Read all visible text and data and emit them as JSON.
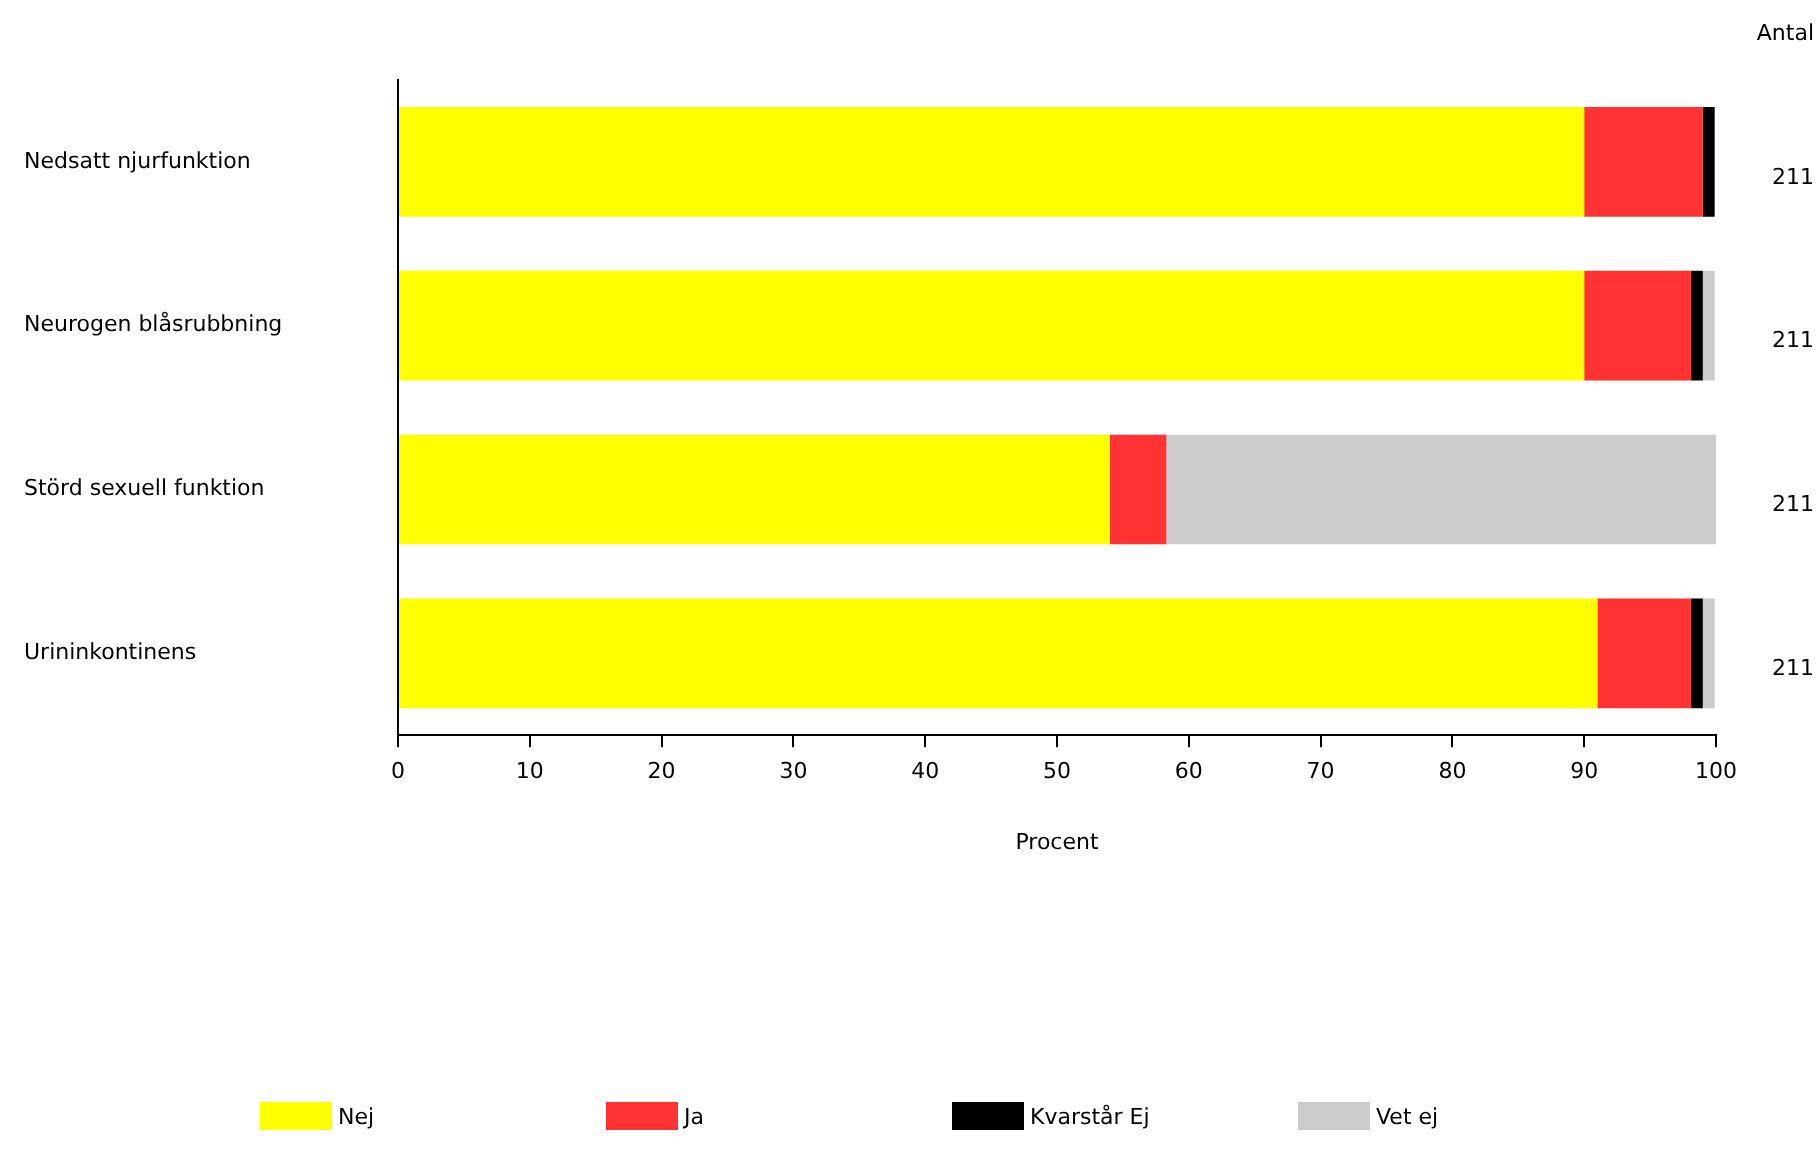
{
  "chart_data": {
    "type": "bar",
    "orientation": "horizontal",
    "stacked": true,
    "xlabel": "Procent",
    "categories": [
      "Nedsatt njurfunktion",
      "Neurogen blåsrubbning",
      "Störd sexuell funktion",
      "Urininkontinens"
    ],
    "series": [
      {
        "name": "Nej",
        "color": "#ffff00",
        "values": [
          90.0,
          90.0,
          54.0,
          91.0
        ]
      },
      {
        "name": "Ja",
        "color": "#ff3333",
        "values": [
          9.0,
          8.1,
          4.3,
          7.1
        ]
      },
      {
        "name": "Kvarstår Ej",
        "color": "#000000",
        "values": [
          0.9,
          0.9,
          0,
          0.9
        ]
      },
      {
        "name": "Vet ej",
        "color": "#cccccc",
        "values": [
          0,
          0.9,
          41.7,
          0.9
        ]
      }
    ],
    "xlim": [
      0,
      100
    ],
    "xticks": [
      0,
      10,
      20,
      30,
      40,
      50,
      60,
      70,
      80,
      90,
      100
    ],
    "grid": false,
    "legend": "bottom",
    "annotations": [
      "Antal",
      "211",
      "211",
      "211",
      "211"
    ]
  }
}
